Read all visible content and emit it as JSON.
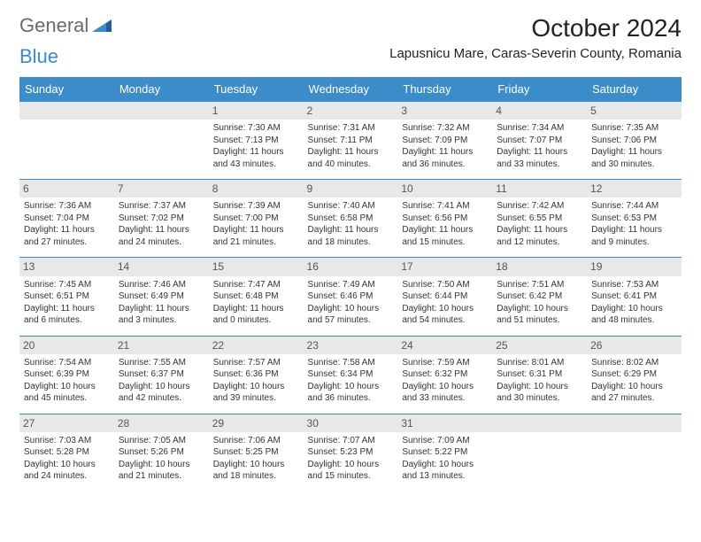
{
  "logo": {
    "part1": "General",
    "part2": "Blue"
  },
  "title": "October 2024",
  "location": "Lapusnicu Mare, Caras-Severin County, Romania",
  "colors": {
    "header_bg": "#3b8cc9",
    "header_text": "#ffffff",
    "daynum_bg": "#e8e8e8",
    "daynum_text": "#555555",
    "border": "#3b8cc9",
    "page_bg": "#ffffff",
    "body_text": "#333333",
    "logo_gray": "#6a6a6a",
    "logo_blue": "#3b8cc9"
  },
  "fonts": {
    "month_title_pt": 28,
    "location_pt": 15,
    "weekday_pt": 13,
    "daynum_pt": 12,
    "cell_pt": 10
  },
  "weekdays": [
    "Sunday",
    "Monday",
    "Tuesday",
    "Wednesday",
    "Thursday",
    "Friday",
    "Saturday"
  ],
  "weeks": [
    [
      null,
      null,
      {
        "n": "1",
        "sr": "7:30 AM",
        "ss": "7:13 PM",
        "dl": "11 hours and 43 minutes."
      },
      {
        "n": "2",
        "sr": "7:31 AM",
        "ss": "7:11 PM",
        "dl": "11 hours and 40 minutes."
      },
      {
        "n": "3",
        "sr": "7:32 AM",
        "ss": "7:09 PM",
        "dl": "11 hours and 36 minutes."
      },
      {
        "n": "4",
        "sr": "7:34 AM",
        "ss": "7:07 PM",
        "dl": "11 hours and 33 minutes."
      },
      {
        "n": "5",
        "sr": "7:35 AM",
        "ss": "7:06 PM",
        "dl": "11 hours and 30 minutes."
      }
    ],
    [
      {
        "n": "6",
        "sr": "7:36 AM",
        "ss": "7:04 PM",
        "dl": "11 hours and 27 minutes."
      },
      {
        "n": "7",
        "sr": "7:37 AM",
        "ss": "7:02 PM",
        "dl": "11 hours and 24 minutes."
      },
      {
        "n": "8",
        "sr": "7:39 AM",
        "ss": "7:00 PM",
        "dl": "11 hours and 21 minutes."
      },
      {
        "n": "9",
        "sr": "7:40 AM",
        "ss": "6:58 PM",
        "dl": "11 hours and 18 minutes."
      },
      {
        "n": "10",
        "sr": "7:41 AM",
        "ss": "6:56 PM",
        "dl": "11 hours and 15 minutes."
      },
      {
        "n": "11",
        "sr": "7:42 AM",
        "ss": "6:55 PM",
        "dl": "11 hours and 12 minutes."
      },
      {
        "n": "12",
        "sr": "7:44 AM",
        "ss": "6:53 PM",
        "dl": "11 hours and 9 minutes."
      }
    ],
    [
      {
        "n": "13",
        "sr": "7:45 AM",
        "ss": "6:51 PM",
        "dl": "11 hours and 6 minutes."
      },
      {
        "n": "14",
        "sr": "7:46 AM",
        "ss": "6:49 PM",
        "dl": "11 hours and 3 minutes."
      },
      {
        "n": "15",
        "sr": "7:47 AM",
        "ss": "6:48 PM",
        "dl": "11 hours and 0 minutes."
      },
      {
        "n": "16",
        "sr": "7:49 AM",
        "ss": "6:46 PM",
        "dl": "10 hours and 57 minutes."
      },
      {
        "n": "17",
        "sr": "7:50 AM",
        "ss": "6:44 PM",
        "dl": "10 hours and 54 minutes."
      },
      {
        "n": "18",
        "sr": "7:51 AM",
        "ss": "6:42 PM",
        "dl": "10 hours and 51 minutes."
      },
      {
        "n": "19",
        "sr": "7:53 AM",
        "ss": "6:41 PM",
        "dl": "10 hours and 48 minutes."
      }
    ],
    [
      {
        "n": "20",
        "sr": "7:54 AM",
        "ss": "6:39 PM",
        "dl": "10 hours and 45 minutes."
      },
      {
        "n": "21",
        "sr": "7:55 AM",
        "ss": "6:37 PM",
        "dl": "10 hours and 42 minutes."
      },
      {
        "n": "22",
        "sr": "7:57 AM",
        "ss": "6:36 PM",
        "dl": "10 hours and 39 minutes."
      },
      {
        "n": "23",
        "sr": "7:58 AM",
        "ss": "6:34 PM",
        "dl": "10 hours and 36 minutes."
      },
      {
        "n": "24",
        "sr": "7:59 AM",
        "ss": "6:32 PM",
        "dl": "10 hours and 33 minutes."
      },
      {
        "n": "25",
        "sr": "8:01 AM",
        "ss": "6:31 PM",
        "dl": "10 hours and 30 minutes."
      },
      {
        "n": "26",
        "sr": "8:02 AM",
        "ss": "6:29 PM",
        "dl": "10 hours and 27 minutes."
      }
    ],
    [
      {
        "n": "27",
        "sr": "7:03 AM",
        "ss": "5:28 PM",
        "dl": "10 hours and 24 minutes."
      },
      {
        "n": "28",
        "sr": "7:05 AM",
        "ss": "5:26 PM",
        "dl": "10 hours and 21 minutes."
      },
      {
        "n": "29",
        "sr": "7:06 AM",
        "ss": "5:25 PM",
        "dl": "10 hours and 18 minutes."
      },
      {
        "n": "30",
        "sr": "7:07 AM",
        "ss": "5:23 PM",
        "dl": "10 hours and 15 minutes."
      },
      {
        "n": "31",
        "sr": "7:09 AM",
        "ss": "5:22 PM",
        "dl": "10 hours and 13 minutes."
      },
      null,
      null
    ]
  ],
  "labels": {
    "sunrise": "Sunrise:",
    "sunset": "Sunset:",
    "daylight": "Daylight:"
  }
}
